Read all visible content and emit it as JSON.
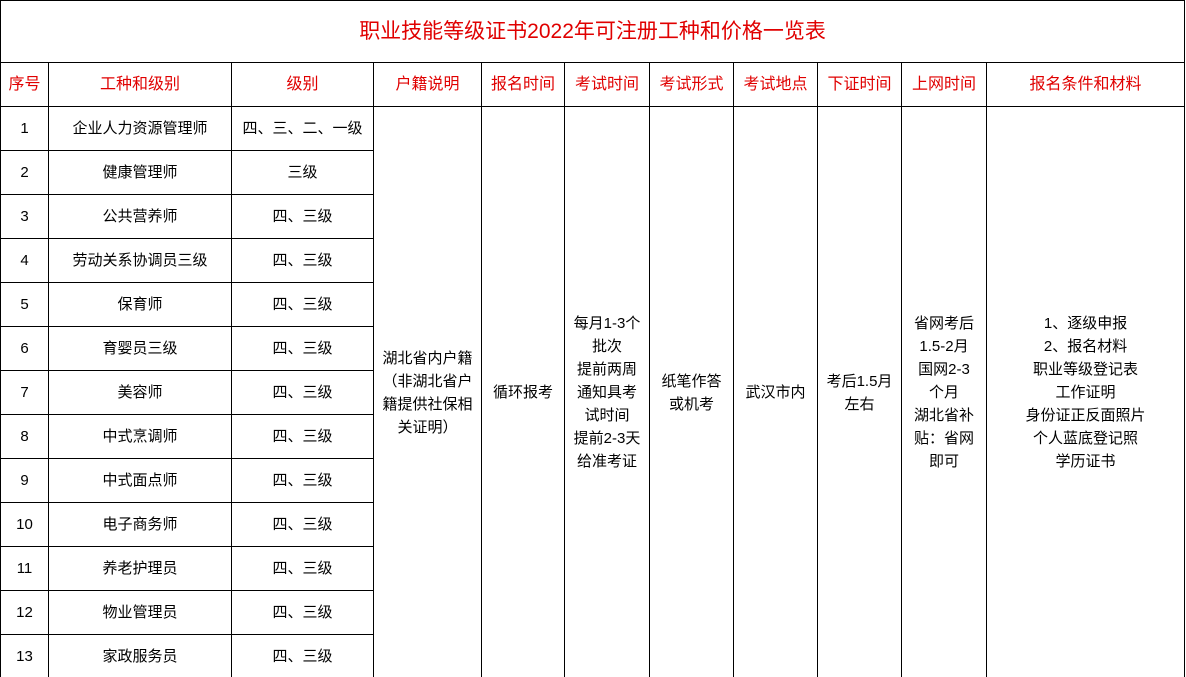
{
  "title": "职业技能等级证书2022年可注册工种和价格一览表",
  "headers": [
    "序号",
    "工种和级别",
    "级别",
    "户籍说明",
    "报名时间",
    "考试时间",
    "考试形式",
    "考试地点",
    "下证时间",
    "上网时间",
    "报名条件和材料"
  ],
  "rows": [
    {
      "no": "1",
      "name": "企业人力资源管理师",
      "level": "四、三、二、一级"
    },
    {
      "no": "2",
      "name": "健康管理师",
      "level": "三级"
    },
    {
      "no": "3",
      "name": "公共营养师",
      "level": "四、三级"
    },
    {
      "no": "4",
      "name": "劳动关系协调员三级",
      "level": "四、三级"
    },
    {
      "no": "5",
      "name": "保育师",
      "level": "四、三级"
    },
    {
      "no": "6",
      "name": "育婴员三级",
      "level": "四、三级"
    },
    {
      "no": "7",
      "name": "美容师",
      "level": "四、三级"
    },
    {
      "no": "8",
      "name": "中式烹调师",
      "level": "四、三级"
    },
    {
      "no": "9",
      "name": "中式面点师",
      "level": "四、三级"
    },
    {
      "no": "10",
      "name": "电子商务师",
      "level": "四、三级"
    },
    {
      "no": "11",
      "name": "养老护理员",
      "level": "四、三级"
    },
    {
      "no": "12",
      "name": "物业管理员",
      "level": "四、三级"
    },
    {
      "no": "13",
      "name": "家政服务员",
      "level": "四、三级"
    }
  ],
  "merged": {
    "huji": [
      "湖北省内户籍",
      "（非湖北省户",
      "籍提供社保相",
      "关证明）"
    ],
    "baoming": "循环报考",
    "kaoshi_time": [
      "每月1-3个",
      "批次",
      "提前两周",
      "通知具考",
      "试时间",
      "提前2-3天",
      "给准考证"
    ],
    "kaoshi_form": [
      "纸笔作答",
      "或机考"
    ],
    "kaoshi_place": "武汉市内",
    "xiazheng": [
      "考后1.5月",
      "左右"
    ],
    "shangwang": [
      "省网考后",
      "1.5-2月",
      "国网2-3",
      "个月",
      "湖北省补",
      "贴：省网",
      "即可"
    ],
    "conditions": [
      "1、逐级申报",
      "2、报名材料",
      "职业等级登记表",
      "工作证明",
      "身份证正反面照片",
      "个人蓝底登记照",
      "学历证书"
    ]
  },
  "colors": {
    "header_text": "#e00000",
    "border": "#000000"
  }
}
